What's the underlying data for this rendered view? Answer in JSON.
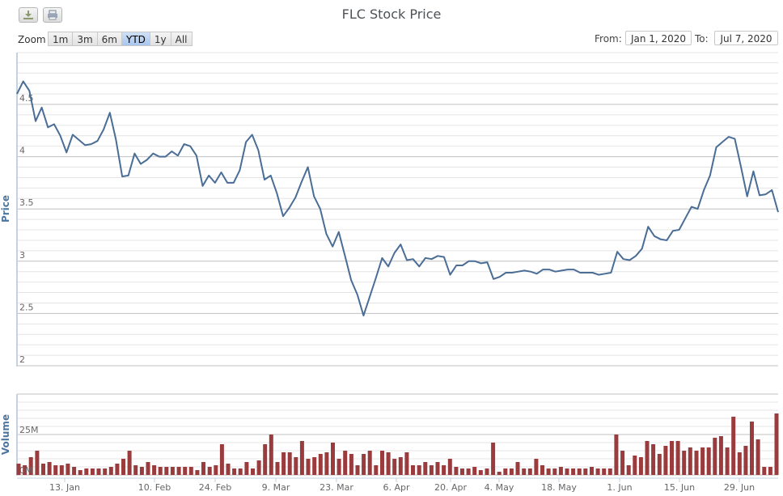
{
  "toolbar": {
    "export_icon": "download-icon",
    "print_icon": "print-icon"
  },
  "title": "FLC Stock Price",
  "range_selector": {
    "label": "Zoom",
    "buttons": [
      {
        "label": "1m",
        "active": false
      },
      {
        "label": "3m",
        "active": false
      },
      {
        "label": "6m",
        "active": false
      },
      {
        "label": "YTD",
        "active": true
      },
      {
        "label": "1y",
        "active": false
      },
      {
        "label": "All",
        "active": false
      }
    ]
  },
  "date_range": {
    "from_label": "From:",
    "from_value": "Jan 1, 2020",
    "to_label": "To:",
    "to_value": "Jul 7, 2020"
  },
  "colors": {
    "price_line": "#4a6d96",
    "volume_bar": "#9a3b3d",
    "grid_major": "#c0c0c0",
    "grid_minor": "#e4e4e4",
    "axis_title": "#4d759e"
  },
  "chart_data": [
    {
      "type": "line",
      "title": "FLC Stock Price",
      "ylabel": "Price",
      "ylim": [
        2,
        4.9
      ],
      "yticks": [
        2,
        2.5,
        3,
        3.5,
        4,
        4.5
      ],
      "x_tick_labels": [
        "13. Jan",
        "10. Feb",
        "24. Feb",
        "9. Mar",
        "23. Mar",
        "6. Apr",
        "20. Apr",
        "4. May",
        "18. May",
        "1. Jun",
        "15. Jun",
        "29. Jun"
      ],
      "grid": true,
      "series": [
        {
          "name": "FLC",
          "values": [
            4.6,
            4.72,
            4.63,
            4.34,
            4.47,
            4.28,
            4.31,
            4.2,
            4.04,
            4.21,
            4.16,
            4.11,
            4.12,
            4.15,
            4.26,
            4.42,
            4.16,
            3.81,
            3.82,
            4.03,
            3.93,
            3.97,
            4.03,
            4.0,
            4.0,
            4.05,
            4.01,
            4.12,
            4.1,
            4.01,
            3.72,
            3.82,
            3.75,
            3.85,
            3.75,
            3.75,
            3.87,
            4.14,
            4.21,
            4.06,
            3.78,
            3.82,
            3.65,
            3.43,
            3.51,
            3.61,
            3.76,
            3.9,
            3.62,
            3.5,
            3.26,
            3.14,
            3.28,
            3.05,
            2.82,
            2.68,
            2.48,
            2.66,
            2.84,
            3.03,
            2.95,
            3.08,
            3.16,
            3.01,
            3.02,
            2.95,
            3.03,
            3.02,
            3.05,
            3.04,
            2.87,
            2.96,
            2.96,
            3.0,
            3.0,
            2.98,
            2.99,
            2.83,
            2.85,
            2.89,
            2.89,
            2.9,
            2.91,
            2.9,
            2.88,
            2.92,
            2.92,
            2.9,
            2.91,
            2.92,
            2.92,
            2.89,
            2.89,
            2.89,
            2.87,
            2.88,
            2.89,
            3.09,
            3.02,
            3.01,
            3.05,
            3.12,
            3.33,
            3.24,
            3.21,
            3.2,
            3.29,
            3.3,
            3.41,
            3.52,
            3.5,
            3.68,
            3.82,
            4.09,
            4.14,
            4.19,
            4.17,
            3.9,
            3.62,
            3.86,
            3.63,
            3.64,
            3.68,
            3.47
          ]
        }
      ]
    },
    {
      "type": "bar",
      "title": "Volume",
      "ylabel": "Volume",
      "yticks": [
        "0M",
        "25M"
      ],
      "ylim": [
        0,
        50
      ],
      "unit": "M",
      "series": [
        {
          "name": "Volume",
          "values": [
            7,
            6,
            11,
            15,
            7,
            8,
            6,
            6,
            7,
            5,
            3,
            4,
            4,
            4,
            4,
            5,
            7,
            10,
            15,
            6,
            5,
            8,
            6,
            5,
            5,
            5,
            5,
            5,
            5,
            3,
            8,
            5,
            6,
            19,
            7,
            4,
            4,
            8,
            4,
            9,
            19,
            25,
            8,
            14,
            14,
            11,
            21,
            10,
            11,
            13,
            14,
            20,
            10,
            15,
            13,
            6,
            13,
            15,
            6,
            15,
            14,
            10,
            11,
            14,
            6,
            6,
            8,
            6,
            8,
            6,
            10,
            5,
            4,
            4,
            5,
            3,
            4,
            20,
            2,
            4,
            4,
            8,
            4,
            4,
            10,
            6,
            4,
            4,
            5,
            4,
            4,
            4,
            4,
            5,
            4,
            4,
            4,
            25,
            15,
            6,
            12,
            11,
            21,
            19,
            13,
            18,
            21,
            21,
            15,
            17,
            15,
            17,
            17,
            23,
            24,
            17,
            36,
            14,
            18,
            33,
            22,
            5,
            5,
            38
          ]
        }
      ]
    }
  ]
}
